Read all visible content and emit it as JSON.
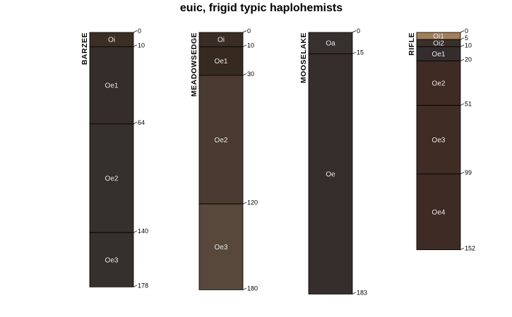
{
  "chart_data": {
    "type": "soil-profile-sketch",
    "title": "euic, frigid typic haplohemists",
    "depth_units": "cm",
    "profiles": [
      {
        "name": "BARZEE",
        "horizons": [
          {
            "name": "Oi",
            "top": 0,
            "bottom": 10,
            "color": "#3c2e24"
          },
          {
            "name": "Oe1",
            "top": 10,
            "bottom": 64,
            "color": "#342d2b"
          },
          {
            "name": "Oe2",
            "top": 64,
            "bottom": 140,
            "color": "#352f2d"
          },
          {
            "name": "Oe3",
            "top": 140,
            "bottom": 178,
            "color": "#35302d"
          }
        ]
      },
      {
        "name": "MEADOWSEDGE",
        "horizons": [
          {
            "name": "Oi",
            "top": 0,
            "bottom": 10,
            "color": "#3a2d25"
          },
          {
            "name": "Oe1",
            "top": 10,
            "bottom": 30,
            "color": "#36291f"
          },
          {
            "name": "Oe2",
            "top": 30,
            "bottom": 120,
            "color": "#4a3a31"
          },
          {
            "name": "Oe3",
            "top": 120,
            "bottom": 180,
            "color": "#57483b"
          }
        ]
      },
      {
        "name": "MOOSELAKE",
        "horizons": [
          {
            "name": "Oa",
            "top": 0,
            "bottom": 15,
            "color": "#36302e"
          },
          {
            "name": "Oe",
            "top": 15,
            "bottom": 183,
            "color": "#352e2c"
          }
        ]
      },
      {
        "name": "RIFLE",
        "horizons": [
          {
            "name": "Oi1",
            "top": 0,
            "bottom": 5,
            "color": "#a07f5a"
          },
          {
            "name": "Oi2",
            "top": 5,
            "bottom": 10,
            "color": "#3a2f2a"
          },
          {
            "name": "Oe1",
            "top": 10,
            "bottom": 20,
            "color": "#332d2e"
          },
          {
            "name": "Oe2",
            "top": 20,
            "bottom": 51,
            "color": "#3f2b24"
          },
          {
            "name": "Oe3",
            "top": 51,
            "bottom": 99,
            "color": "#3f2c25"
          },
          {
            "name": "Oe4",
            "top": 99,
            "bottom": 152,
            "color": "#3f2b26"
          }
        ]
      }
    ]
  }
}
